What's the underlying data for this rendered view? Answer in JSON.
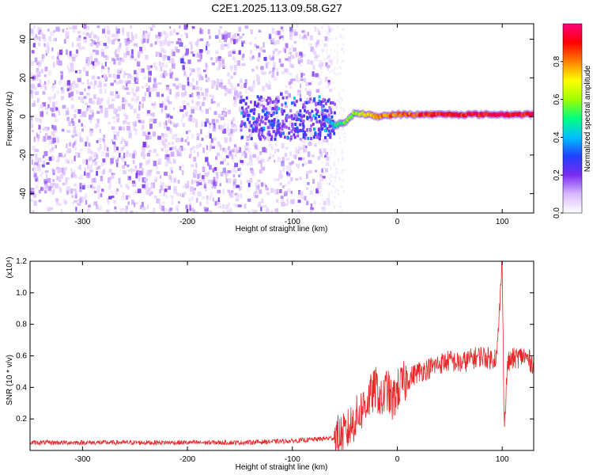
{
  "title": "C2E1.2025.113.09.58.G27",
  "chart_data": [
    {
      "type": "heatmap",
      "xlabel": "Height of straight line (km)",
      "ylabel": "Frequency (Hz)",
      "xlim": [
        -350,
        130
      ],
      "ylim": [
        -50,
        48
      ],
      "x_ticks": [
        -300,
        -200,
        -100,
        0,
        100
      ],
      "y_ticks": [
        -40,
        -20,
        0,
        20,
        40
      ],
      "colorbar": {
        "label": "Normalized spectral amplitude",
        "range": [
          0.0,
          1.0
        ],
        "ticks": [
          0.0,
          0.2,
          0.4,
          0.6,
          0.8
        ],
        "tick_labels": [
          "0.0",
          "0.2",
          "0.4",
          "0.6",
          "0.8"
        ],
        "colormap": [
          "#ffffff",
          "#d8b8ff",
          "#7a2cf0",
          "#2040ff",
          "#00c0ff",
          "#00ff80",
          "#a0ff00",
          "#ffff00",
          "#ff8000",
          "#ff0000",
          "#ff0080"
        ]
      },
      "signal_track": [
        {
          "x": -70,
          "y": 0,
          "amp": 0.35
        },
        {
          "x": -60,
          "y": -5,
          "amp": 0.45
        },
        {
          "x": -50,
          "y": -3,
          "amp": 0.55
        },
        {
          "x": -40,
          "y": 2,
          "amp": 0.6
        },
        {
          "x": -30,
          "y": 1,
          "amp": 0.7
        },
        {
          "x": -20,
          "y": 0,
          "amp": 0.8
        },
        {
          "x": 0,
          "y": 1,
          "amp": 0.8
        },
        {
          "x": 20,
          "y": 1,
          "amp": 0.85
        },
        {
          "x": 50,
          "y": 1,
          "amp": 0.9
        },
        {
          "x": 80,
          "y": 1,
          "amp": 0.9
        },
        {
          "x": 100,
          "y": 1,
          "amp": 0.95
        },
        {
          "x": 130,
          "y": 1,
          "amp": 0.9
        }
      ]
    },
    {
      "type": "line",
      "xlabel": "Height of straight line (km)",
      "ylabel": "SNR (10 * v/v)",
      "y_multiplier": "(x10⁴)",
      "xlim": [
        -350,
        130
      ],
      "ylim": [
        0,
        1.2
      ],
      "x_ticks": [
        -300,
        -200,
        -100,
        0,
        100
      ],
      "y_ticks": [
        0.2,
        0.4,
        0.6,
        0.8,
        1.0,
        1.2
      ],
      "y_tick_labels": [
        "0.2",
        "0.4",
        "0.6",
        "0.8",
        "1.0",
        "1.2"
      ],
      "color": "#e8282a",
      "series": [
        {
          "x": [
            -350,
            -300,
            -250,
            -200,
            -150,
            -100,
            -80,
            -60,
            -50,
            -45,
            -40,
            -35,
            -30,
            -25,
            -20,
            -15,
            -10,
            -5,
            0,
            5,
            10,
            20,
            30,
            40,
            50,
            60,
            70,
            80,
            90,
            95,
            100,
            102,
            105,
            110,
            120,
            130
          ],
          "y": [
            0.05,
            0.05,
            0.05,
            0.05,
            0.05,
            0.06,
            0.07,
            0.08,
            0.1,
            0.15,
            0.2,
            0.25,
            0.3,
            0.35,
            0.4,
            0.3,
            0.4,
            0.3,
            0.38,
            0.42,
            0.45,
            0.5,
            0.52,
            0.55,
            0.57,
            0.55,
            0.58,
            0.6,
            0.58,
            0.6,
            1.2,
            0.12,
            0.55,
            0.58,
            0.6,
            0.55
          ]
        }
      ]
    }
  ]
}
